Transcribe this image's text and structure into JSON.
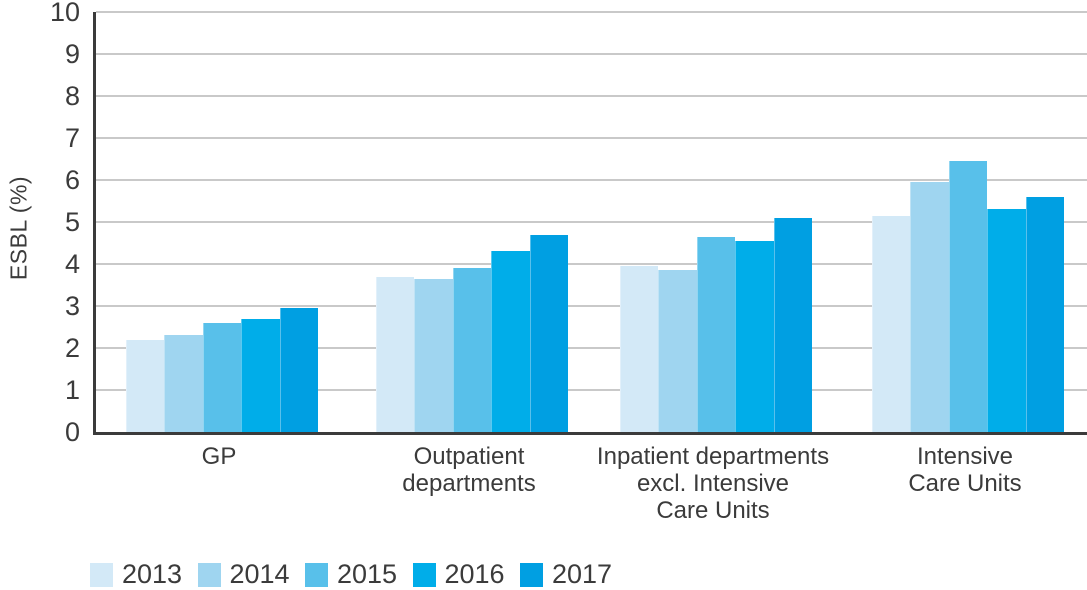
{
  "chart_data": {
    "type": "bar",
    "title": "",
    "ylabel": "ESBL (%)",
    "xlabel": "",
    "ylim": [
      0,
      10
    ],
    "yticks": [
      0,
      1,
      2,
      3,
      4,
      5,
      6,
      7,
      8,
      9,
      10
    ],
    "grid": true,
    "legend_position": "bottom",
    "categories": [
      "GP",
      "Outpatient departments",
      "Inpatient departments excl. Intensive Care Units",
      "Intensive Care Units"
    ],
    "category_label_lines": [
      [
        "GP"
      ],
      [
        "Outpatient",
        "departments"
      ],
      [
        "Inpatient departments",
        "excl. Intensive",
        "Care Units"
      ],
      [
        "Intensive",
        "Care Units"
      ]
    ],
    "series": [
      {
        "name": "2013",
        "color": "#D3E9F7",
        "values": [
          2.2,
          3.7,
          3.95,
          5.15
        ]
      },
      {
        "name": "2014",
        "color": "#9FD5F0",
        "values": [
          2.3,
          3.65,
          3.85,
          5.95
        ]
      },
      {
        "name": "2015",
        "color": "#58C0EA",
        "values": [
          2.6,
          3.9,
          4.65,
          6.45
        ]
      },
      {
        "name": "2016",
        "color": "#00ADE9",
        "values": [
          2.7,
          4.3,
          4.55,
          5.3
        ]
      },
      {
        "name": "2017",
        "color": "#009FE2",
        "values": [
          2.95,
          4.7,
          5.1,
          5.6
        ]
      }
    ],
    "colors": {
      "gridline": "#C9C9C9",
      "axis": "#3B3B3B",
      "text": "#3B3B3B"
    }
  }
}
